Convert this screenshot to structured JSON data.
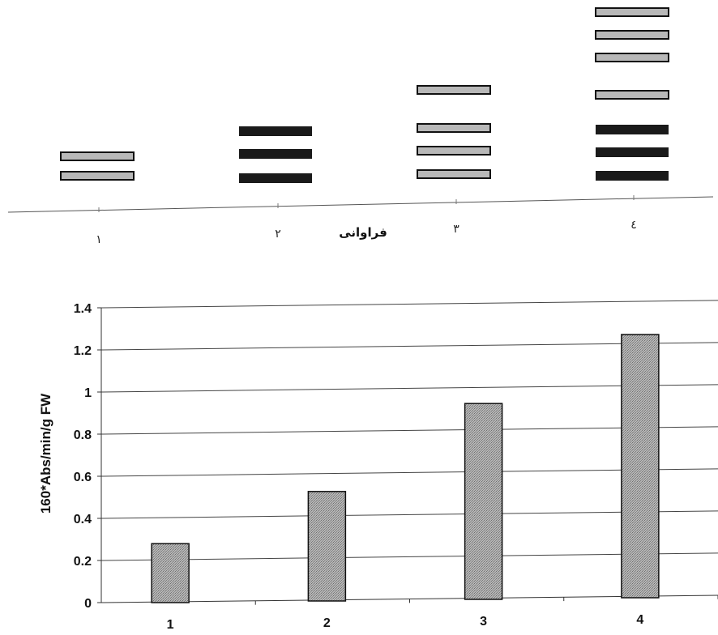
{
  "chart_data": [
    {
      "type": "bands",
      "title": "",
      "xlabel": "فراوانی",
      "lanes": [
        {
          "label": "۱",
          "bands": [
            "light",
            "light"
          ]
        },
        {
          "label": "۲",
          "bands": [
            "dark",
            "dark",
            "dark"
          ]
        },
        {
          "label": "۳",
          "bands": [
            "light",
            "light",
            "light",
            "light"
          ]
        },
        {
          "label": "٤",
          "bands": [
            "dark",
            "dark",
            "dark",
            "light",
            "light",
            "light",
            "light"
          ]
        }
      ],
      "colors": {
        "dark": "#1a1a1a",
        "light": "#b8b8b8"
      }
    },
    {
      "type": "bar",
      "title": "",
      "xlabel": "",
      "ylabel": "160*Abs/min/g FW",
      "categories": [
        "1",
        "2",
        "3",
        "4"
      ],
      "values": [
        0.28,
        0.52,
        0.93,
        1.25
      ],
      "ylim": [
        0,
        1.4
      ],
      "yticks": [
        "0",
        "0.2",
        "0.4",
        "0.6",
        "0.8",
        "1",
        "1.2",
        "1.4"
      ],
      "grid": true,
      "bar_color": "#a9a9a9"
    }
  ]
}
